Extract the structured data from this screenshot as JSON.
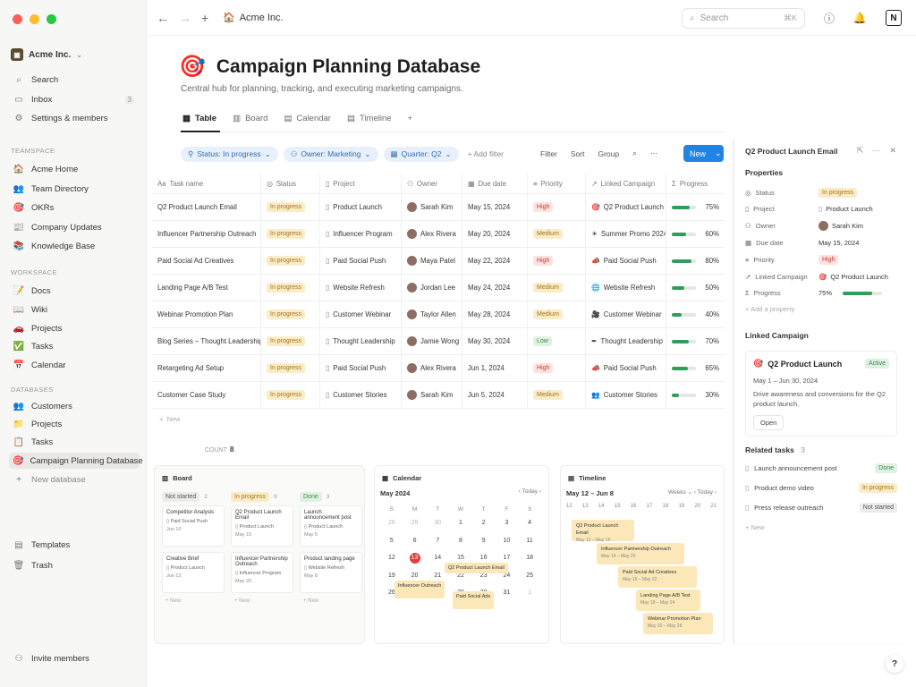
{
  "window": {
    "light_colors": [
      "#fe5f57",
      "#febc2e",
      "#28c840"
    ]
  },
  "workspace": {
    "name": "Acme Inc."
  },
  "sidebar": {
    "top": [
      {
        "label": "Search",
        "icon": "search-icon"
      },
      {
        "label": "Inbox",
        "icon": "inbox-icon",
        "badge": "3"
      },
      {
        "label": "Settings & members",
        "icon": "gear-icon"
      }
    ],
    "teamspace_heading": "TEAMSPACE",
    "teamspace": [
      {
        "label": "Acme Home",
        "icon": "🏠"
      },
      {
        "label": "Team Directory",
        "icon": "👥"
      },
      {
        "label": "OKRs",
        "icon": "🎯"
      },
      {
        "label": "Company Updates",
        "icon": "📰"
      },
      {
        "label": "Knowledge Base",
        "icon": "📚"
      }
    ],
    "workspace_heading": "WORKSPACE",
    "workspace": [
      {
        "label": "Docs",
        "icon": "📝"
      },
      {
        "label": "Wiki",
        "icon": "📖"
      },
      {
        "label": "Projects",
        "icon": "🚗"
      },
      {
        "label": "Tasks",
        "icon": "✅"
      },
      {
        "label": "Calendar",
        "icon": "📅"
      }
    ],
    "databases_heading": "DATABASES",
    "databases": [
      {
        "label": "Customers",
        "icon": "👥"
      },
      {
        "label": "Projects",
        "icon": "📁"
      },
      {
        "label": "Tasks",
        "icon": "📋"
      },
      {
        "label": "Campaign Planning Database",
        "icon": "🎯"
      },
      {
        "label": "New database",
        "icon": "+"
      }
    ],
    "bottom": [
      {
        "label": "Templates",
        "icon": "templates-icon"
      },
      {
        "label": "Trash",
        "icon": "trash-icon"
      }
    ],
    "invite": "Invite members"
  },
  "topbar": {
    "breadcrumb": "Acme Inc.",
    "search_placeholder": "Search",
    "shortcut": "⌘K"
  },
  "page": {
    "icon": "🎯",
    "title": "Campaign Planning Database",
    "description": "Central hub for planning, tracking, and executing marketing campaigns.",
    "tabs": [
      "Table",
      "Board",
      "Calendar",
      "Timeline"
    ]
  },
  "filters": {
    "chips": [
      "Status: In progress",
      "Owner: Marketing",
      "Quarter: Q2"
    ],
    "add_filter": "Add filter",
    "tools": [
      "Filter",
      "Sort",
      "Group"
    ],
    "new_label": "New"
  },
  "table": {
    "columns": [
      "Task name",
      "Status",
      "Project",
      "Owner",
      "Due date",
      "Priority",
      "Linked Campaign",
      "Progress"
    ],
    "rows": [
      {
        "task": "Q2 Product Launch Email",
        "status": "In progress",
        "project": "Product Launch",
        "owner": "Sarah Kim",
        "due": "May 15, 2024",
        "priority": "High",
        "campaign": "Q2 Product Launch",
        "campaign_icon": "🎯",
        "progress": 75,
        "progress_label": "75%"
      },
      {
        "task": "Influencer Partnership Outreach",
        "status": "In progress",
        "project": "Influencer Program",
        "owner": "Alex Rivera",
        "due": "May 20, 2024",
        "priority": "Medium",
        "campaign": "Summer Promo 2024",
        "campaign_icon": "☀",
        "progress": 60,
        "progress_label": "60%"
      },
      {
        "task": "Paid Social Ad Creatives",
        "status": "In progress",
        "project": "Paid Social Push",
        "owner": "Maya Patel",
        "due": "May 22, 2024",
        "priority": "High",
        "campaign": "Paid Social Push",
        "campaign_icon": "📣",
        "progress": 80,
        "progress_label": "80%"
      },
      {
        "task": "Landing Page A/B Test",
        "status": "In progress",
        "project": "Website Refresh",
        "owner": "Jordan Lee",
        "due": "May 24, 2024",
        "priority": "Medium",
        "campaign": "Website Refresh",
        "campaign_icon": "🌐",
        "progress": 50,
        "progress_label": "50%"
      },
      {
        "task": "Webinar Promotion Plan",
        "status": "In progress",
        "project": "Customer Webinar",
        "owner": "Taylor Allen",
        "due": "May 28, 2024",
        "priority": "Medium",
        "campaign": "Customer Webinar",
        "campaign_icon": "🎥",
        "progress": 40,
        "progress_label": "40%"
      },
      {
        "task": "Blog Series – Thought Leadership",
        "status": "In progress",
        "project": "Thought Leadership",
        "owner": "Jamie Wong",
        "due": "May 30, 2024",
        "priority": "Low",
        "campaign": "Thought Leadership",
        "campaign_icon": "✒",
        "progress": 70,
        "progress_label": "70%"
      },
      {
        "task": "Retargeting Ad Setup",
        "status": "In progress",
        "project": "Paid Social Push",
        "owner": "Alex Rivera",
        "due": "Jun 1, 2024",
        "priority": "High",
        "campaign": "Paid Social Push",
        "campaign_icon": "📣",
        "progress": 65,
        "progress_label": "65%"
      },
      {
        "task": "Customer Case Study",
        "status": "In progress",
        "project": "Customer Stories",
        "owner": "Sarah Kim",
        "due": "Jun 5, 2024",
        "priority": "Medium",
        "campaign": "Customer Stories",
        "campaign_icon": "👥",
        "progress": 30,
        "progress_label": "30%"
      }
    ],
    "new_row": "New",
    "count_label": "COUNT",
    "count_value": "8"
  },
  "panel": {
    "title": "Q2 Product Launch Email",
    "properties_heading": "Properties",
    "props": [
      {
        "key": "Status",
        "value": "In progress"
      },
      {
        "key": "Project",
        "value": "Product Launch"
      },
      {
        "key": "Owner",
        "value": "Sarah Kim"
      },
      {
        "key": "Due date",
        "value": "May 15, 2024"
      },
      {
        "key": "Priority",
        "value": "High"
      },
      {
        "key": "Linked Campaign",
        "value": "Q2 Product Launch"
      },
      {
        "key": "Progress",
        "value": "75%",
        "progress": 75
      }
    ],
    "add_property": "Add a property",
    "linked_heading": "Linked Campaign",
    "linked": {
      "title": "Q2 Product Launch",
      "badge": "Active",
      "dates": "May 1 – Jun 30, 2024",
      "desc": "Drive awareness and conversions for the Q2 product launch.",
      "open": "Open"
    },
    "related_heading": "Related tasks",
    "related_count": "3",
    "related": [
      {
        "label": "Launch announcement post",
        "status": "Done"
      },
      {
        "label": "Product demo video",
        "status": "In progress"
      },
      {
        "label": "Press release outreach",
        "status": "Not started"
      }
    ],
    "new_label": "New"
  },
  "board": {
    "title": "Board",
    "columns": [
      {
        "name": "Not started",
        "count": "2",
        "cards": [
          {
            "title": "Competitor Analysis",
            "project": "Paid Social Push",
            "date": "Jun 10"
          },
          {
            "title": "Creative Brief",
            "project": "Product Launch",
            "date": "Jun 12"
          }
        ]
      },
      {
        "name": "In progress",
        "count": "9",
        "cards": [
          {
            "title": "Q2 Product Launch Email",
            "project": "Product Launch",
            "date": "May 15"
          },
          {
            "title": "Influencer Partnership Outreach",
            "project": "Influencer Program",
            "date": "May 20"
          }
        ]
      },
      {
        "name": "Done",
        "count": "3",
        "cards": [
          {
            "title": "Launch announcement post",
            "project": "Product Launch",
            "date": "May 5"
          },
          {
            "title": "Product landing page",
            "project": "Website Refresh",
            "date": "May 8"
          }
        ]
      }
    ],
    "new_label": "New"
  },
  "calendar": {
    "title": "Calendar",
    "month": "May 2024",
    "today_label": "Today",
    "dow": [
      "S",
      "M",
      "T",
      "W",
      "T",
      "F",
      "S"
    ],
    "days": [
      "28",
      "29",
      "30",
      "1",
      "2",
      "3",
      "4",
      "5",
      "6",
      "7",
      "8",
      "9",
      "10",
      "11",
      "12",
      "13",
      "14",
      "15",
      "16",
      "17",
      "18",
      "19",
      "20",
      "21",
      "22",
      "23",
      "24",
      "25",
      "26",
      "27",
      "28",
      "29",
      "30",
      "31",
      "1"
    ],
    "today": "13",
    "events": [
      "Q2 Product Launch Email",
      "Influencer Outreach",
      "Paid Social Ads"
    ]
  },
  "timeline": {
    "title": "Timeline",
    "range": "May 12 – Jun 8",
    "scale": "Weeks",
    "today_label": "Today",
    "axis": [
      "12",
      "13",
      "14",
      "15",
      "16",
      "17",
      "18",
      "19",
      "20",
      "21"
    ],
    "bars": [
      {
        "title": "Q2 Product Launch Email",
        "dates": "May 12 – May 15"
      },
      {
        "title": "Influencer Partnership Outreach",
        "dates": "May 14 – May 20"
      },
      {
        "title": "Paid Social Ad Creatives",
        "dates": "May 16 – May 22"
      },
      {
        "title": "Landing Page A/B Test",
        "dates": "May 18 – May 24"
      },
      {
        "title": "Webinar Promotion Plan",
        "dates": "May 20 – May 28"
      }
    ]
  },
  "colors": {
    "accent": "#2383e2",
    "progress": "#2f9e5b",
    "today": "#e03e3e"
  }
}
